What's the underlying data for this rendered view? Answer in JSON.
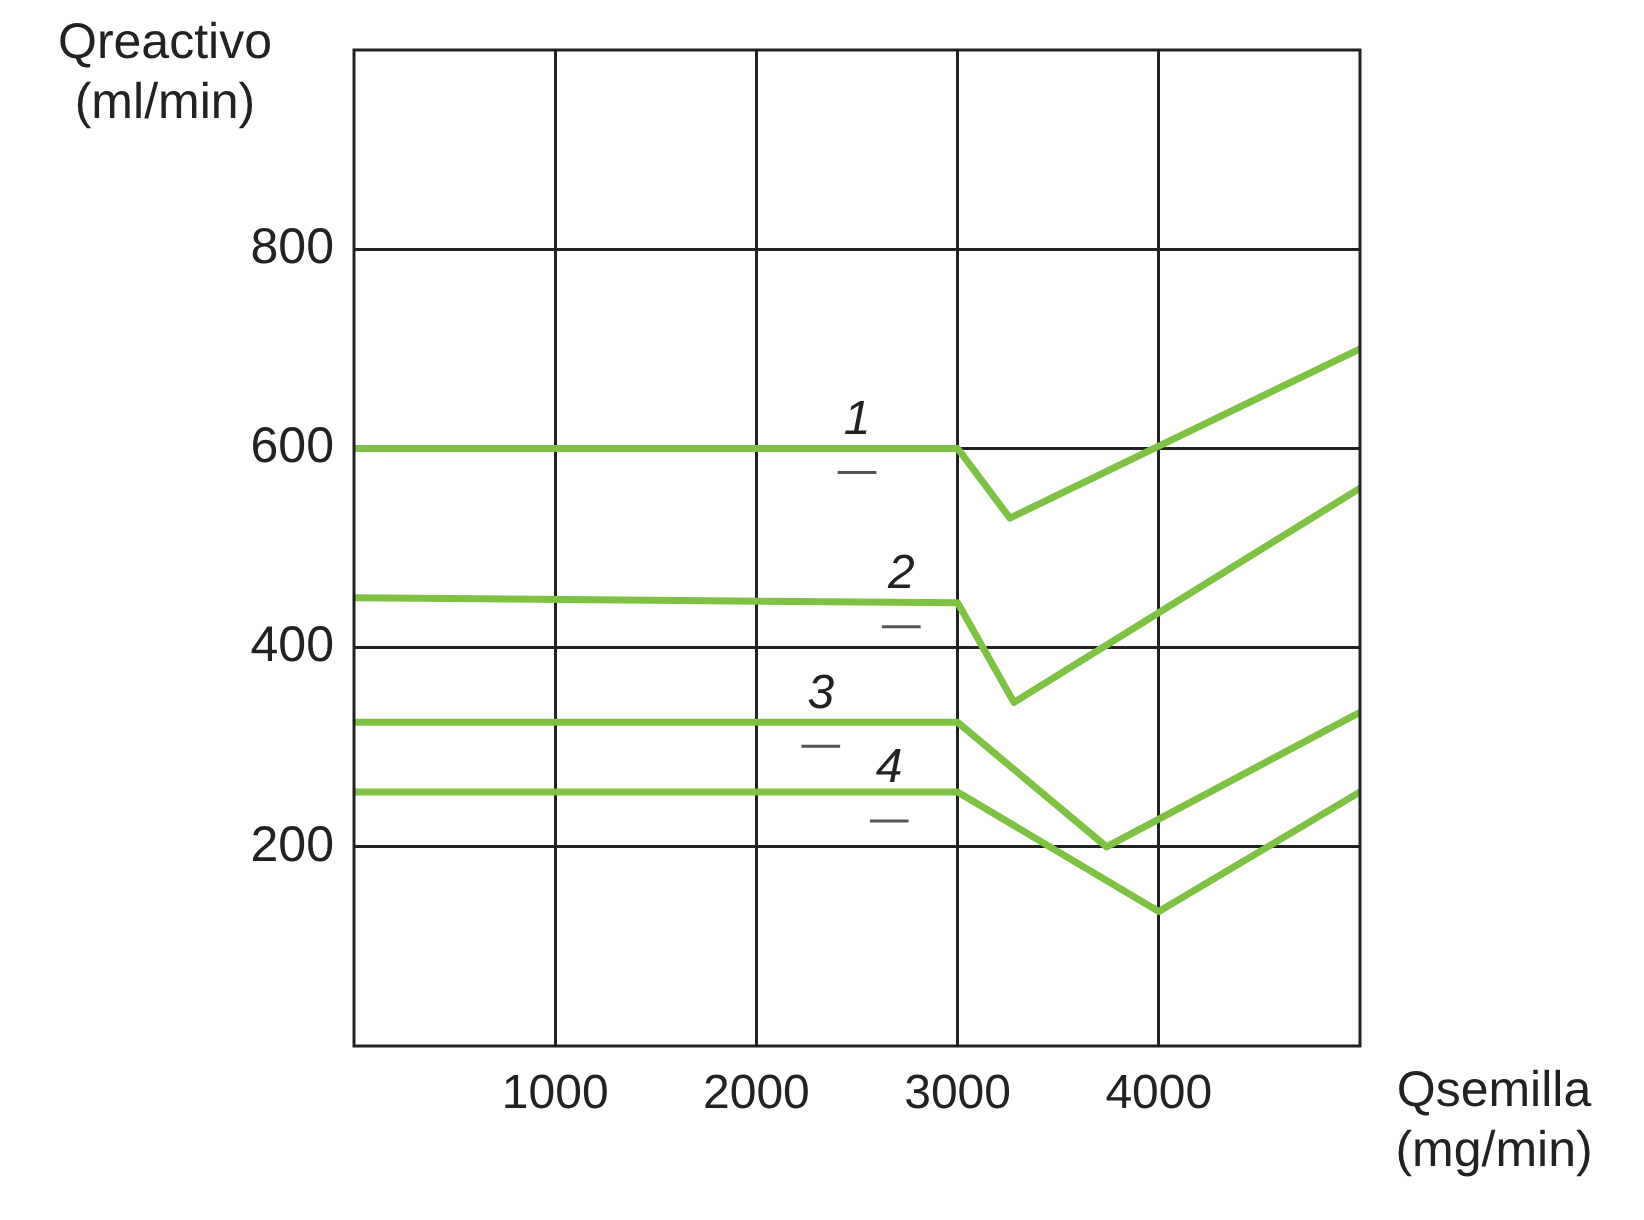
{
  "chart_data": {
    "type": "line",
    "xlabel": "Qsemilla\n(mg/min)",
    "ylabel": "Qreactivo\n(ml/min)",
    "xlim": [
      0,
      5000
    ],
    "xticks": [
      1000,
      2000,
      3000,
      4000
    ],
    "ylim": [
      0,
      1000
    ],
    "yticks": [
      200,
      400,
      600,
      800
    ],
    "grid": true,
    "legend": false,
    "marker": "none",
    "line_style": "solid",
    "series": [
      {
        "color": "#7dc242",
        "x": [
          0,
          3000,
          3260,
          5000
        ],
        "values": [
          600,
          600,
          530,
          700
        ]
      },
      {
        "color": "#7dc242",
        "x": [
          0,
          3000,
          3280,
          5000
        ],
        "values": [
          450,
          445,
          345,
          560
        ]
      },
      {
        "color": "#7dc242",
        "x": [
          0,
          3000,
          3740,
          5000
        ],
        "values": [
          325,
          325,
          200,
          335
        ]
      },
      {
        "color": "#7dc242",
        "x": [
          0,
          3000,
          4000,
          5000
        ],
        "values": [
          255,
          255,
          135,
          255
        ]
      }
    ],
    "annotations": [
      {
        "text": "1",
        "x": 2500,
        "y": 600
      },
      {
        "text": "2",
        "x": 2720,
        "y": 445
      },
      {
        "text": "3",
        "x": 2320,
        "y": 325
      },
      {
        "text": "4",
        "x": 2660,
        "y": 250
      }
    ]
  }
}
